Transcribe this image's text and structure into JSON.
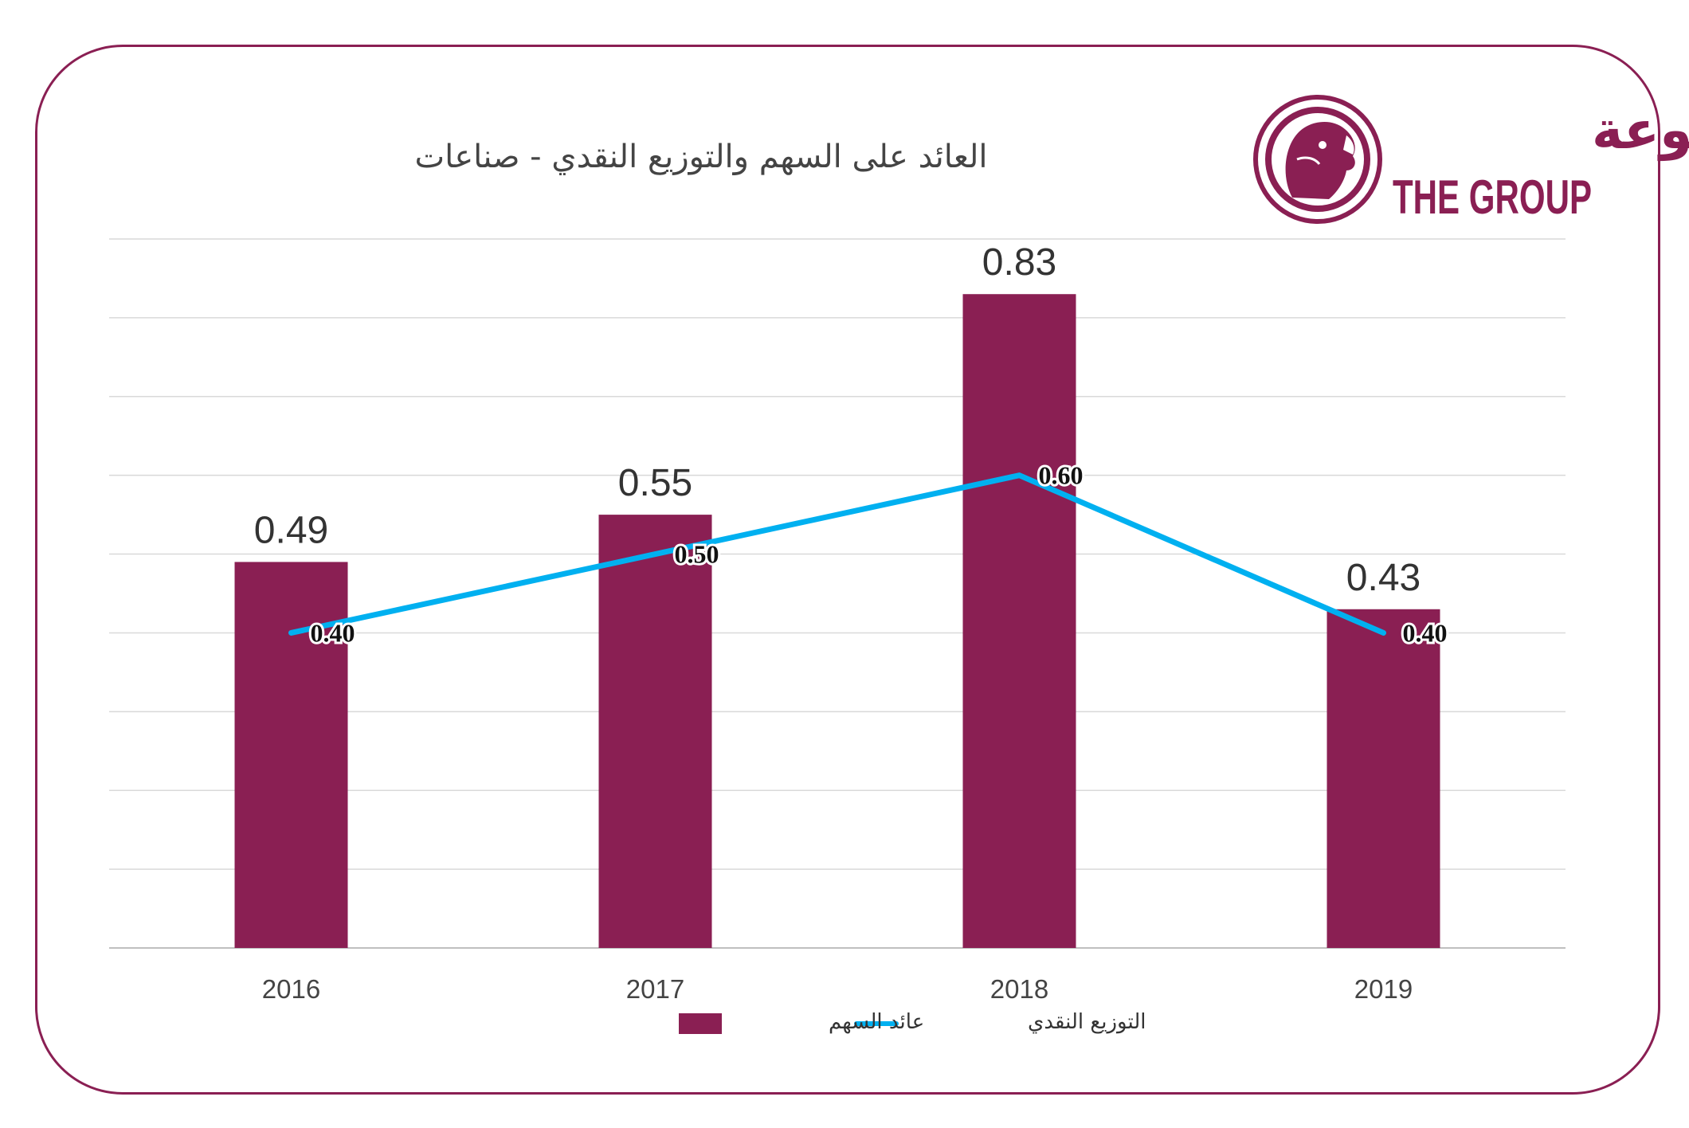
{
  "brand": {
    "name_ar": "المجموعة",
    "name_en": "THE GROUP",
    "color": "#8a1f53"
  },
  "chart_data": {
    "type": "bar",
    "title": "العائد على السهم والتوزيع النقدي - صناعات",
    "categories": [
      "2016",
      "2017",
      "2018",
      "2019"
    ],
    "ylim": [
      0,
      0.9
    ],
    "grid": true,
    "legend_position": "bottom",
    "series": [
      {
        "name": "عائد السهم",
        "kind": "bar",
        "color": "#8a1f53",
        "values": [
          0.49,
          0.55,
          0.83,
          0.43
        ],
        "labels": [
          "0.49",
          "0.55",
          "0.83",
          "0.43"
        ]
      },
      {
        "name": "التوزيع النقدي",
        "kind": "line",
        "color": "#00b0f0",
        "values": [
          0.4,
          0.5,
          0.6,
          0.4
        ],
        "labels": [
          "0.40",
          "0.50",
          "0.60",
          "0.40"
        ]
      }
    ]
  }
}
